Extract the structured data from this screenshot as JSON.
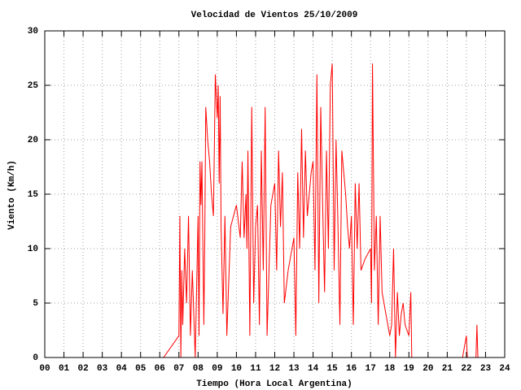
{
  "chart_data": {
    "type": "line",
    "title": "Velocidad de Vientos 25/10/2009",
    "xlabel": "Tiempo (Hora Local Argentina)",
    "ylabel": "Viento (Km/h)",
    "color": "#ff0000",
    "grid": true,
    "xlim": [
      0,
      24
    ],
    "ylim": [
      0,
      30
    ],
    "xticks": [
      {
        "value": 0,
        "label": "00"
      },
      {
        "value": 1,
        "label": "01"
      },
      {
        "value": 2,
        "label": "02"
      },
      {
        "value": 3,
        "label": "03"
      },
      {
        "value": 4,
        "label": "04"
      },
      {
        "value": 5,
        "label": "05"
      },
      {
        "value": 6,
        "label": "06"
      },
      {
        "value": 7,
        "label": "07"
      },
      {
        "value": 8,
        "label": "08"
      },
      {
        "value": 9,
        "label": "09"
      },
      10,
      11,
      12,
      13,
      14,
      15,
      16,
      17,
      18,
      19,
      20,
      21,
      22,
      23,
      24
    ],
    "yticks": [
      0,
      5,
      10,
      15,
      20,
      25,
      30
    ],
    "x": [
      0,
      6.2,
      7.0,
      7.05,
      7.1,
      7.15,
      7.2,
      7.3,
      7.4,
      7.5,
      7.6,
      7.7,
      7.85,
      8.0,
      8.05,
      8.1,
      8.15,
      8.2,
      8.3,
      8.35,
      8.4,
      8.5,
      8.6,
      8.7,
      8.8,
      8.9,
      9.0,
      9.05,
      9.1,
      9.15,
      9.2,
      9.3,
      9.4,
      9.5,
      9.7,
      10.0,
      10.2,
      10.3,
      10.4,
      10.5,
      10.55,
      10.6,
      10.7,
      10.8,
      10.9,
      11.0,
      11.1,
      11.2,
      11.3,
      11.4,
      11.5,
      11.6,
      11.8,
      12.0,
      12.1,
      12.2,
      12.3,
      12.4,
      12.5,
      12.7,
      13.0,
      13.1,
      13.2,
      13.3,
      13.4,
      13.5,
      13.6,
      13.7,
      13.9,
      14.0,
      14.1,
      14.2,
      14.3,
      14.4,
      14.5,
      14.6,
      14.7,
      14.8,
      14.9,
      15.0,
      15.1,
      15.2,
      15.3,
      15.4,
      15.5,
      15.6,
      15.7,
      15.8,
      15.9,
      16.0,
      16.1,
      16.2,
      16.3,
      16.4,
      16.5,
      16.7,
      17.0,
      17.05,
      17.1,
      17.2,
      17.3,
      17.4,
      17.5,
      17.6,
      17.8,
      18.0,
      18.1,
      18.2,
      18.3,
      18.4,
      18.5,
      18.6,
      18.7,
      18.8,
      19.0,
      19.1,
      19.15,
      19.2,
      20.9,
      21.8,
      22.0,
      22.05,
      22.5,
      22.55,
      22.6,
      22.7
    ],
    "values": [
      0,
      0,
      2,
      13,
      0,
      8,
      3,
      10,
      5,
      13,
      2,
      8,
      0,
      13,
      2,
      18,
      14,
      18,
      3,
      11,
      23,
      20,
      18,
      15,
      13,
      26,
      22,
      25,
      16,
      24,
      12,
      4,
      13,
      2,
      12,
      14,
      11,
      18,
      11,
      15,
      10,
      19,
      2,
      23,
      5,
      12,
      14,
      3,
      19,
      8,
      23,
      2,
      14,
      16,
      8,
      19,
      12,
      17,
      5,
      8,
      11,
      2,
      17,
      10,
      21,
      11,
      19,
      13,
      17,
      18,
      8,
      26,
      5,
      23,
      14,
      6,
      19,
      10,
      25,
      27,
      8,
      20,
      12,
      3,
      19,
      17,
      15,
      12,
      10,
      13,
      3,
      16,
      10,
      16,
      8,
      9,
      10,
      5,
      27,
      8,
      13,
      3,
      13,
      6,
      4,
      2,
      3,
      10,
      0,
      6,
      2,
      4,
      5,
      3,
      2,
      6,
      0,
      0,
      0,
      0,
      2,
      0,
      0,
      3,
      0,
      0
    ]
  }
}
